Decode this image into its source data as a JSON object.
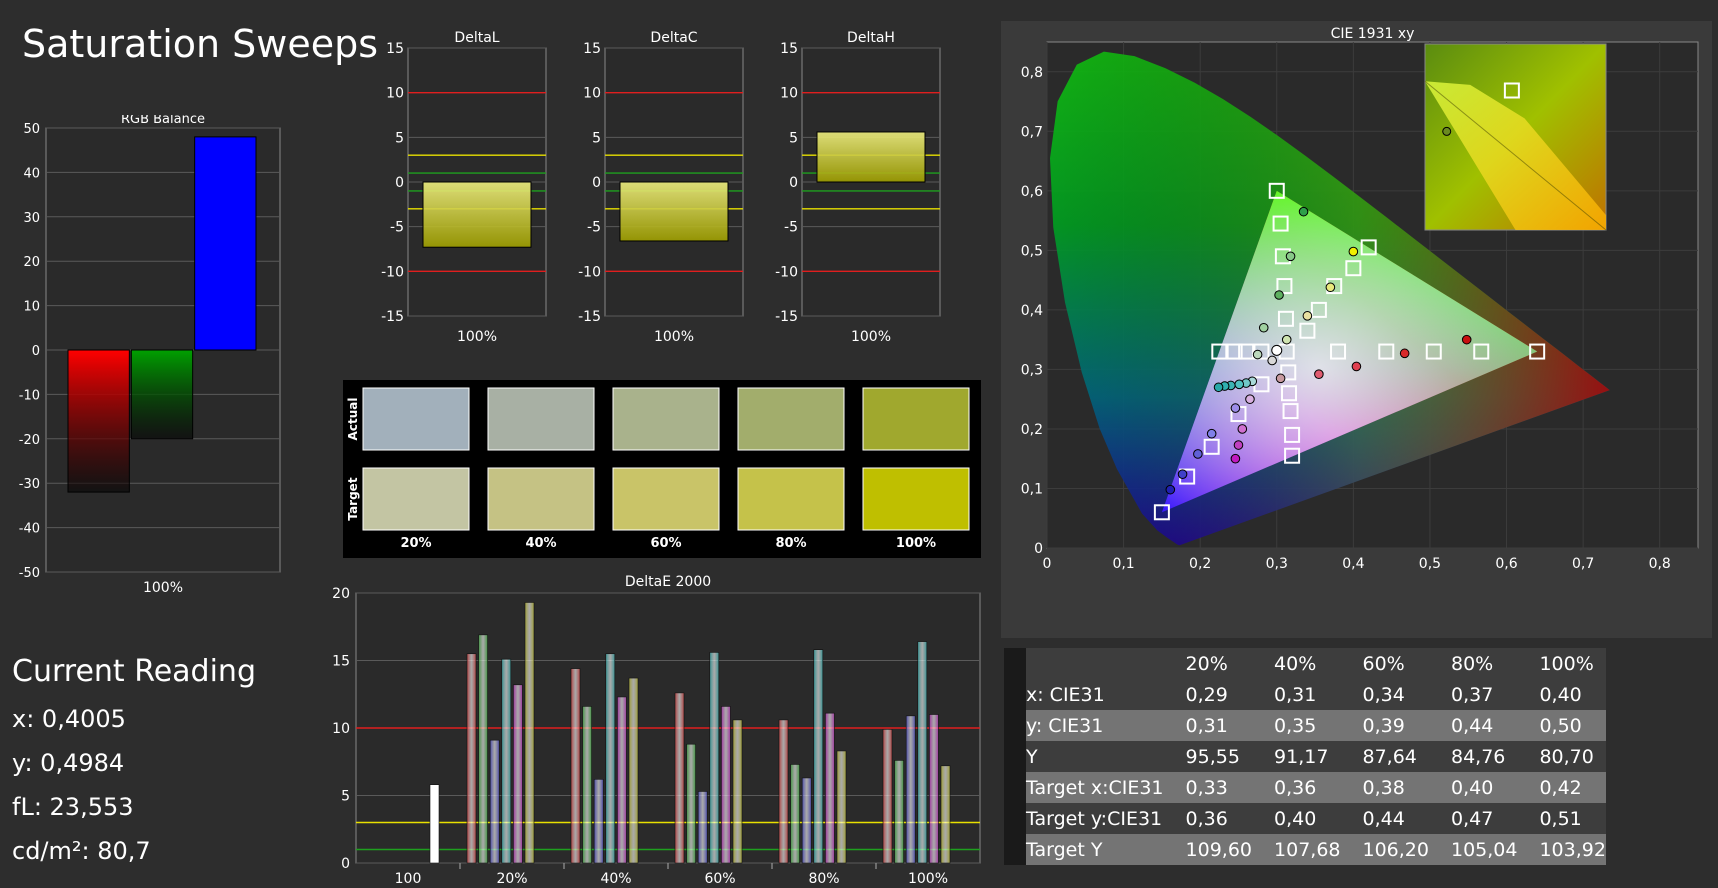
{
  "page": {
    "title": "Saturation Sweeps"
  },
  "current_reading": {
    "heading": "Current Reading",
    "lines": [
      "x: 0,4005",
      "y: 0,4984",
      "fL: 23,553",
      "cd/m²: 80,7"
    ]
  },
  "colors": {
    "bg": "#2d2d2d",
    "plot_bg": "#2a2a2a",
    "grid": "#5a5a5a",
    "text": "#ffffff",
    "red_limit": "#e01e1e",
    "yellow_limit": "#e8e000",
    "green_limit": "#1ea01e"
  },
  "chart_data": [
    {
      "id": "rgb_balance",
      "type": "bar",
      "title": "RGB Balance",
      "categories": [
        "100%"
      ],
      "series": [
        {
          "values": [
            -32
          ],
          "color": "#ff0000"
        },
        {
          "values": [
            -20
          ],
          "color": "#00a000"
        },
        {
          "values": [
            48
          ],
          "color": "#0000ff"
        }
      ],
      "ylim": [
        -50,
        50
      ],
      "yticks": [
        50,
        40,
        30,
        20,
        10,
        0,
        -10,
        -20,
        -30,
        -40,
        -50
      ],
      "xlabel": "100%"
    },
    {
      "id": "delta_l",
      "type": "bar",
      "title": "DeltaL",
      "categories": [
        "100%"
      ],
      "values": [
        -7.3
      ],
      "ylim": [
        -15,
        15
      ],
      "yticks": [
        15,
        10,
        5,
        0,
        -5,
        -10,
        -15
      ],
      "limits": {
        "red": [
          10,
          -10
        ],
        "yellow": [
          3,
          -3
        ],
        "green": [
          1,
          -1
        ]
      }
    },
    {
      "id": "delta_c",
      "type": "bar",
      "title": "DeltaC",
      "categories": [
        "100%"
      ],
      "values": [
        -6.6
      ],
      "ylim": [
        -15,
        15
      ],
      "yticks": [
        15,
        10,
        5,
        0,
        -5,
        -10,
        -15
      ],
      "limits": {
        "red": [
          10,
          -10
        ],
        "yellow": [
          3,
          -3
        ],
        "green": [
          1,
          -1
        ]
      }
    },
    {
      "id": "delta_h",
      "type": "bar",
      "title": "DeltaH",
      "categories": [
        "100%"
      ],
      "values": [
        5.6
      ],
      "ylim": [
        -15,
        15
      ],
      "yticks": [
        15,
        10,
        5,
        0,
        -5,
        -10,
        -15
      ],
      "limits": {
        "red": [
          10,
          -10
        ],
        "yellow": [
          3,
          -3
        ],
        "green": [
          1,
          -1
        ]
      }
    },
    {
      "id": "swatches",
      "type": "table",
      "rows": [
        "Actual",
        "Target"
      ],
      "categories": [
        "20%",
        "40%",
        "60%",
        "80%",
        "100%"
      ],
      "actual_colors": [
        "#a2b0bb",
        "#a8b0a4",
        "#a9b28c",
        "#a2ad6c",
        "#a0a82e"
      ],
      "target_colors": [
        "#c3c5a3",
        "#c5c284",
        "#c9c468",
        "#c5c24a",
        "#bfbf00"
      ]
    },
    {
      "id": "delta_e_2000",
      "type": "bar",
      "title": "DeltaE 2000",
      "categories": [
        "100",
        "20%",
        "40%",
        "60%",
        "80%",
        "100%"
      ],
      "series": [
        {
          "name": "white",
          "color": "#ffffff",
          "values": [
            5.8,
            null,
            null,
            null,
            null,
            null
          ]
        },
        {
          "name": "red",
          "color": "#e85050",
          "values": [
            null,
            15.5,
            14.4,
            12.6,
            10.6,
            9.9
          ]
        },
        {
          "name": "green",
          "color": "#50c050",
          "values": [
            null,
            16.9,
            11.6,
            8.8,
            7.3,
            7.6
          ]
        },
        {
          "name": "blue",
          "color": "#6060e0",
          "values": [
            null,
            9.1,
            6.2,
            5.3,
            6.3,
            10.9
          ]
        },
        {
          "name": "cyan",
          "color": "#40c0c0",
          "values": [
            null,
            15.1,
            15.5,
            15.6,
            15.8,
            16.4
          ]
        },
        {
          "name": "magenta",
          "color": "#d040d0",
          "values": [
            null,
            13.2,
            12.3,
            11.6,
            11.1,
            11.0
          ]
        },
        {
          "name": "yellow",
          "color": "#d0d040",
          "values": [
            null,
            19.3,
            13.7,
            10.6,
            8.3,
            7.2
          ]
        }
      ],
      "ylim": [
        0,
        20
      ],
      "yticks": [
        20,
        15,
        10,
        5,
        0
      ],
      "limits": {
        "red": 10,
        "yellow": 3,
        "green": 1
      }
    },
    {
      "id": "cie_1931",
      "type": "scatter",
      "title": "CIE 1931 xy",
      "xlim": [
        0,
        0.85
      ],
      "ylim": [
        0,
        0.85
      ],
      "xticks": [
        "0",
        "0,1",
        "0,2",
        "0,3",
        "0,4",
        "0,5",
        "0,6",
        "0,7",
        "0,8"
      ],
      "yticks": [
        "0",
        "0,1",
        "0,2",
        "0,3",
        "0,4",
        "0,5",
        "0,6",
        "0,7",
        "0,8"
      ],
      "gamut": [
        [
          0.64,
          0.33
        ],
        [
          0.3,
          0.6
        ],
        [
          0.15,
          0.06
        ]
      ],
      "targets": [
        [
          0.3,
          0.6
        ],
        [
          0.305,
          0.545
        ],
        [
          0.308,
          0.49
        ],
        [
          0.31,
          0.44
        ],
        [
          0.312,
          0.385
        ],
        [
          0.313,
          0.33
        ],
        [
          0.42,
          0.505
        ],
        [
          0.4,
          0.47
        ],
        [
          0.375,
          0.44
        ],
        [
          0.355,
          0.4
        ],
        [
          0.34,
          0.365
        ],
        [
          0.64,
          0.33
        ],
        [
          0.567,
          0.33
        ],
        [
          0.505,
          0.33
        ],
        [
          0.443,
          0.33
        ],
        [
          0.38,
          0.33
        ],
        [
          0.225,
          0.33
        ],
        [
          0.245,
          0.33
        ],
        [
          0.26,
          0.33
        ],
        [
          0.28,
          0.33
        ],
        [
          0.15,
          0.06
        ],
        [
          0.183,
          0.12
        ],
        [
          0.215,
          0.17
        ],
        [
          0.32,
          0.155
        ],
        [
          0.32,
          0.19
        ],
        [
          0.318,
          0.23
        ],
        [
          0.316,
          0.26
        ],
        [
          0.315,
          0.295
        ],
        [
          0.28,
          0.275
        ],
        [
          0.25,
          0.225
        ]
      ],
      "measured": [
        {
          "x": 0.335,
          "y": 0.565,
          "c": "#2fa04a"
        },
        {
          "x": 0.318,
          "y": 0.49,
          "c": "#88c888"
        },
        {
          "x": 0.303,
          "y": 0.425,
          "c": "#5eb060"
        },
        {
          "x": 0.283,
          "y": 0.37,
          "c": "#a0d0a0"
        },
        {
          "x": 0.313,
          "y": 0.35,
          "c": "#cfe4b0"
        },
        {
          "x": 0.275,
          "y": 0.325,
          "c": "#bcd8bc"
        },
        {
          "x": 0.4,
          "y": 0.498,
          "c": "#f0f000"
        },
        {
          "x": 0.37,
          "y": 0.438,
          "c": "#e8e87c"
        },
        {
          "x": 0.34,
          "y": 0.39,
          "c": "#e8e0a0"
        },
        {
          "x": 0.355,
          "y": 0.292,
          "c": "#e05c70"
        },
        {
          "x": 0.404,
          "y": 0.305,
          "c": "#e04050"
        },
        {
          "x": 0.467,
          "y": 0.327,
          "c": "#d82a2a"
        },
        {
          "x": 0.548,
          "y": 0.35,
          "c": "#c81010"
        },
        {
          "x": 0.268,
          "y": 0.28,
          "c": "#a8d8d8"
        },
        {
          "x": 0.26,
          "y": 0.277,
          "c": "#70c8c8"
        },
        {
          "x": 0.251,
          "y": 0.275,
          "c": "#50c0c0"
        },
        {
          "x": 0.24,
          "y": 0.273,
          "c": "#3cb4b4"
        },
        {
          "x": 0.232,
          "y": 0.272,
          "c": "#30b0b0"
        },
        {
          "x": 0.224,
          "y": 0.27,
          "c": "#28a8a8"
        },
        {
          "x": 0.294,
          "y": 0.315,
          "c": "#d8d8d8"
        },
        {
          "x": 0.305,
          "y": 0.285,
          "c": "#c89aa0"
        },
        {
          "x": 0.265,
          "y": 0.25,
          "c": "#d8b0e0"
        },
        {
          "x": 0.255,
          "y": 0.2,
          "c": "#d070d0"
        },
        {
          "x": 0.25,
          "y": 0.173,
          "c": "#c040c0"
        },
        {
          "x": 0.246,
          "y": 0.15,
          "c": "#c018c0"
        },
        {
          "x": 0.246,
          "y": 0.235,
          "c": "#9c8ce8"
        },
        {
          "x": 0.215,
          "y": 0.192,
          "c": "#8080e8"
        },
        {
          "x": 0.197,
          "y": 0.158,
          "c": "#6060d8"
        },
        {
          "x": 0.177,
          "y": 0.124,
          "c": "#4040c8"
        },
        {
          "x": 0.161,
          "y": 0.098,
          "c": "#2020b0"
        }
      ],
      "current": {
        "x": 0.4005,
        "y": 0.4984
      }
    }
  ],
  "table": {
    "headers": [
      "",
      "20%",
      "40%",
      "60%",
      "80%",
      "100%"
    ],
    "rows": [
      [
        "x: CIE31",
        "0,29",
        "0,31",
        "0,34",
        "0,37",
        "0,40"
      ],
      [
        "y: CIE31",
        "0,31",
        "0,35",
        "0,39",
        "0,44",
        "0,50"
      ],
      [
        "Y",
        "95,55",
        "91,17",
        "87,64",
        "84,76",
        "80,70"
      ],
      [
        "Target x:CIE31",
        "0,33",
        "0,36",
        "0,38",
        "0,40",
        "0,42"
      ],
      [
        "Target y:CIE31",
        "0,36",
        "0,40",
        "0,44",
        "0,47",
        "0,51"
      ],
      [
        "Target Y",
        "109,60",
        "107,68",
        "106,20",
        "105,04",
        "103,92"
      ]
    ]
  }
}
